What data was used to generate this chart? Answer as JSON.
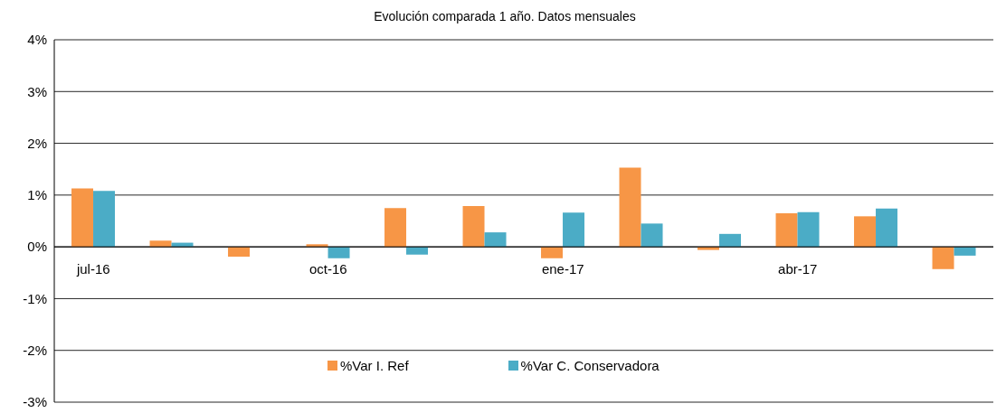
{
  "chart_data": {
    "type": "bar",
    "title": "Evolución comparada 1 año. Datos mensuales",
    "categories": [
      "jul-16",
      null,
      null,
      "oct-16",
      null,
      null,
      "ene-17",
      null,
      null,
      "abr-17",
      null,
      null
    ],
    "series": [
      {
        "name": "%Var I. Ref",
        "color": "#f79646",
        "values": [
          1.13,
          0.12,
          -0.19,
          0.05,
          0.75,
          0.79,
          -0.22,
          1.53,
          -0.06,
          0.65,
          0.59,
          -0.43
        ]
      },
      {
        "name": "%Var C. Conservadora",
        "color": "#4bacc6",
        "values": [
          1.08,
          0.08,
          0,
          -0.22,
          -0.15,
          0.28,
          0.66,
          0.45,
          0.25,
          0.67,
          0.74,
          -0.17
        ]
      }
    ],
    "ylim": [
      -3,
      4
    ],
    "yticks": [
      {
        "value": -3,
        "label": "-3%"
      },
      {
        "value": -2,
        "label": "-2%"
      },
      {
        "value": -1,
        "label": "-1%"
      },
      {
        "value": 0,
        "label": "0%"
      },
      {
        "value": 1,
        "label": "1%"
      },
      {
        "value": 2,
        "label": "2%"
      },
      {
        "value": 3,
        "label": "3%"
      },
      {
        "value": 4,
        "label": "4%"
      }
    ],
    "grid": "y",
    "legend": "bottom"
  }
}
